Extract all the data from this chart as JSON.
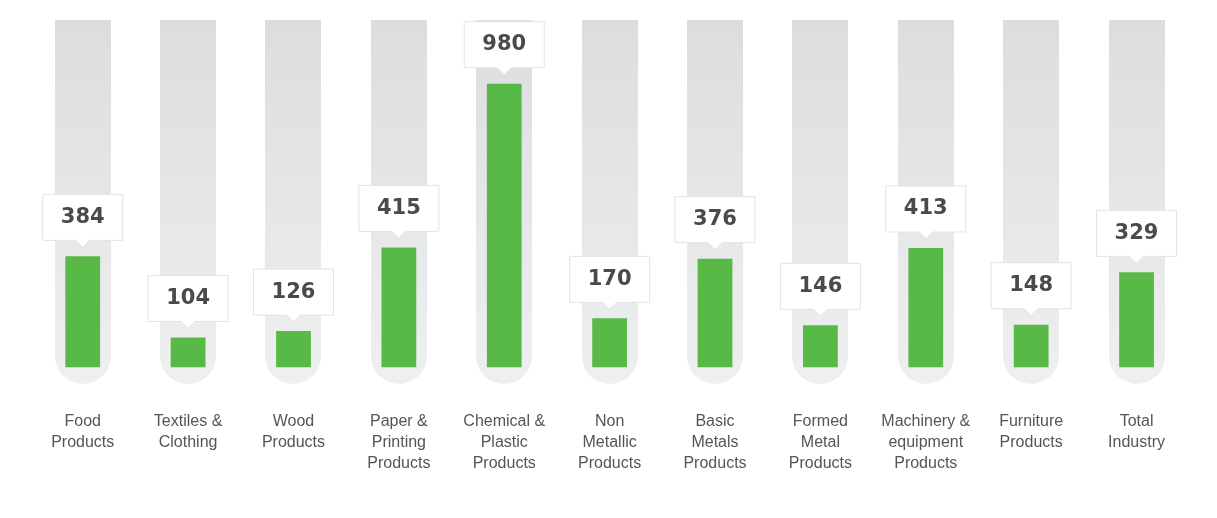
{
  "chart_data": {
    "type": "bar",
    "categories": [
      "Food Products",
      "Textiles & Clothing",
      "Wood Products",
      "Paper & Printing Products",
      "Chemical & Plastic Products",
      "Non Metallic Products",
      "Basic Metals Products",
      "Formed Metal Products",
      "Machinery & equipment Products",
      "Furniture Products",
      "Total Industry"
    ],
    "values": [
      384,
      104,
      126,
      415,
      980,
      170,
      376,
      146,
      413,
      148,
      329
    ],
    "color": "#58b947",
    "data_labels": true,
    "grid": false,
    "legend": false
  }
}
